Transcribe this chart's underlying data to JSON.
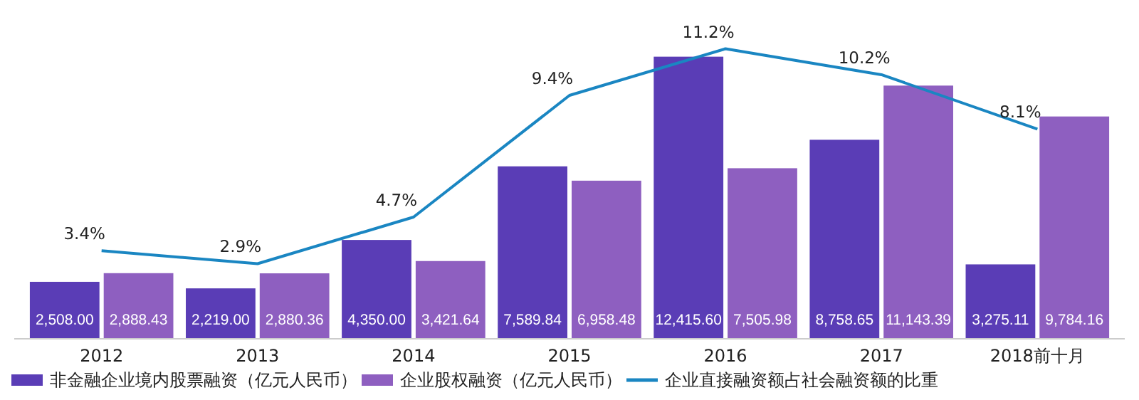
{
  "chart_data": {
    "type": "bar",
    "categories": [
      "2012",
      "2013",
      "2014",
      "2015",
      "2016",
      "2017",
      "2018前十月"
    ],
    "tick_labels": "x",
    "legend": "bottom",
    "data_labels": true,
    "series": [
      {
        "name": "非金融企业境内股票融资（亿元人民币）",
        "color": "#5a3db6",
        "values": [
          2508.0,
          2219.0,
          4350.0,
          7589.84,
          12415.6,
          8758.65,
          3275.11
        ],
        "value_labels": [
          "2,508.00",
          "2,219.00",
          "4,350.00",
          "7,589.84",
          "12,415.60",
          "8,758.65",
          "3,275.11"
        ]
      },
      {
        "name": "企业股权融资（亿元人民币）",
        "color": "#8e5fc0",
        "values": [
          2888.43,
          2880.36,
          3421.64,
          6958.48,
          7505.98,
          11143.39,
          9784.16
        ],
        "value_labels": [
          "2,888.43",
          "2,880.36",
          "3,421.64",
          "6,958.48",
          "7,505.98",
          "11,143.39",
          "9,784.16"
        ]
      },
      {
        "name": "企业直接融资额占社会融资额的比重",
        "type": "line",
        "axis": "y2",
        "color": "#1a86c2",
        "values": [
          3.4,
          2.9,
          4.7,
          9.4,
          11.2,
          10.2,
          8.1
        ],
        "value_labels": [
          "3.4%",
          "2.9%",
          "4.7%",
          "9.4%",
          "11.2%",
          "10.2%",
          "8.1%"
        ]
      }
    ]
  }
}
